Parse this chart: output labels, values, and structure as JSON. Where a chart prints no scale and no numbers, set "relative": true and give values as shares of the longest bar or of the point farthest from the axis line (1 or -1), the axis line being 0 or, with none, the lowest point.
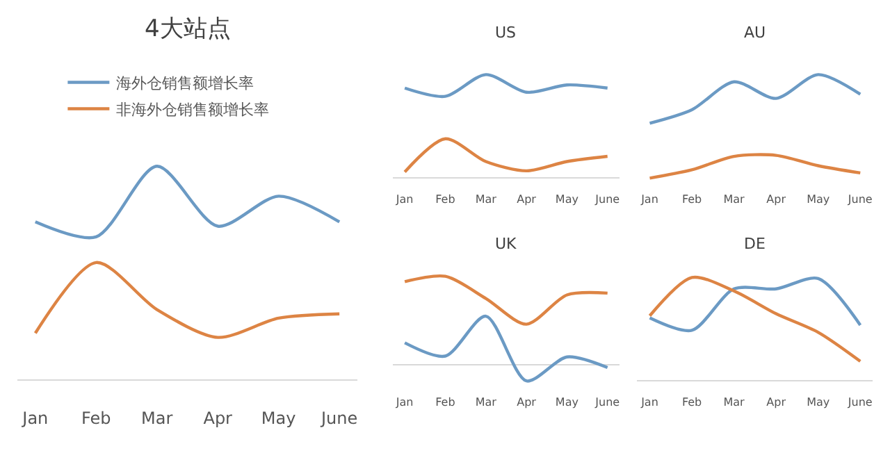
{
  "chart_data": [
    {
      "type": "line",
      "title": "4大站点",
      "relative": true,
      "legend": "top",
      "categories": [
        "Jan",
        "Feb",
        "Mar",
        "Apr",
        "May",
        "June"
      ],
      "series": [
        {
          "name": "海外仓销售额增长率",
          "color": "#6b9ac4",
          "values": [
            0.74,
            0.67,
            1,
            0.72,
            0.86,
            0.74
          ]
        },
        {
          "name": "非海外仓销售额增长率",
          "color": "#dd8444",
          "values": [
            0.22,
            0.55,
            0.33,
            0.2,
            0.29,
            0.31
          ]
        }
      ]
    },
    {
      "type": "line",
      "title": "US",
      "relative": true,
      "categories": [
        "Jan",
        "Feb",
        "Mar",
        "Apr",
        "May",
        "June"
      ],
      "series": [
        {
          "color": "#6b9ac4",
          "values": [
            0.87,
            0.79,
            1,
            0.83,
            0.9,
            0.87
          ]
        },
        {
          "color": "#dd8444",
          "values": [
            0.06,
            0.38,
            0.16,
            0.07,
            0.16,
            0.21
          ]
        }
      ]
    },
    {
      "type": "line",
      "title": "AU",
      "relative": true,
      "categories": [
        "Jan",
        "Feb",
        "Mar",
        "Apr",
        "May",
        "June"
      ],
      "series": [
        {
          "color": "#6b9ac4",
          "values": [
            0.53,
            0.66,
            0.93,
            0.77,
            1,
            0.81
          ]
        },
        {
          "color": "#dd8444",
          "values": [
            0,
            0.08,
            0.21,
            0.22,
            0.12,
            0.05
          ]
        }
      ]
    },
    {
      "type": "line",
      "title": "UK",
      "relative": true,
      "categories": [
        "Jan",
        "Feb",
        "Mar",
        "Apr",
        "May",
        "June"
      ],
      "series": [
        {
          "color": "#6b9ac4",
          "values": [
            0.25,
            0.1,
            0.55,
            -0.18,
            0.09,
            -0.03
          ]
        },
        {
          "color": "#dd8444",
          "values": [
            0.94,
            1,
            0.75,
            0.46,
            0.79,
            0.81
          ]
        }
      ]
    },
    {
      "type": "line",
      "title": "DE",
      "relative": true,
      "categories": [
        "Jan",
        "Feb",
        "Mar",
        "Apr",
        "May",
        "June"
      ],
      "series": [
        {
          "color": "#6b9ac4",
          "values": [
            0.61,
            0.49,
            0.89,
            0.89,
            0.99,
            0.54
          ]
        },
        {
          "color": "#dd8444",
          "values": [
            0.63,
            1,
            0.87,
            0.65,
            0.47,
            0.19
          ]
        }
      ]
    }
  ]
}
